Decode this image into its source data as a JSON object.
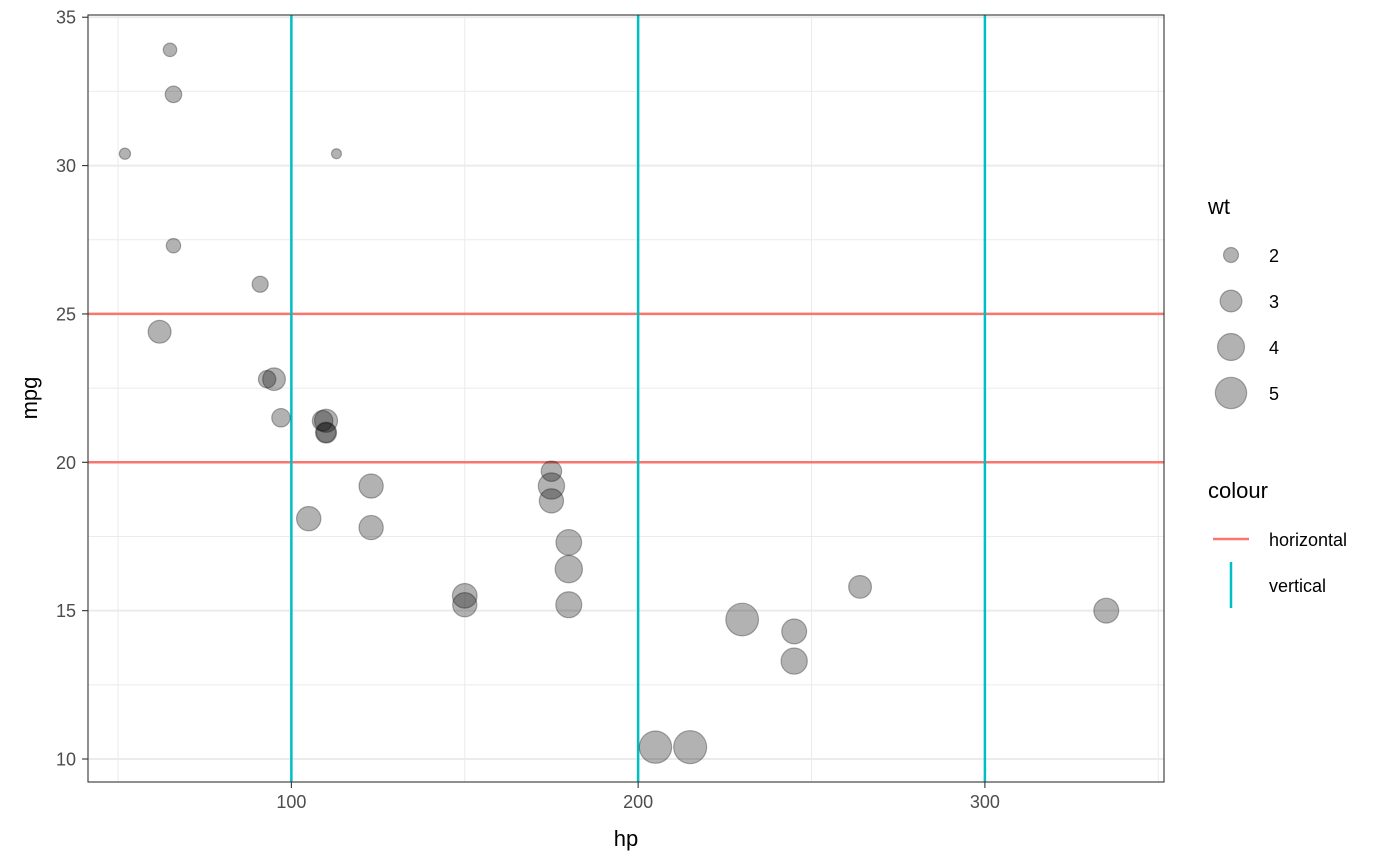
{
  "chart_data": {
    "type": "scatter",
    "xlabel": "hp",
    "ylabel": "mpg",
    "xlim": [
      41.35,
      351.65
    ],
    "ylim": [
      9.225,
      35.075
    ],
    "x_ticks": [
      100,
      200,
      300
    ],
    "y_ticks": [
      10,
      15,
      20,
      25,
      30,
      35
    ],
    "grid": true,
    "points": [
      {
        "x": 110,
        "y": 21.0,
        "wt": 2.62
      },
      {
        "x": 110,
        "y": 21.0,
        "wt": 2.875
      },
      {
        "x": 93,
        "y": 22.8,
        "wt": 2.32
      },
      {
        "x": 110,
        "y": 21.4,
        "wt": 3.215
      },
      {
        "x": 175,
        "y": 18.7,
        "wt": 3.44
      },
      {
        "x": 105,
        "y": 18.1,
        "wt": 3.46
      },
      {
        "x": 245,
        "y": 14.3,
        "wt": 3.57
      },
      {
        "x": 62,
        "y": 24.4,
        "wt": 3.19
      },
      {
        "x": 95,
        "y": 22.8,
        "wt": 3.15
      },
      {
        "x": 123,
        "y": 19.2,
        "wt": 3.44
      },
      {
        "x": 123,
        "y": 17.8,
        "wt": 3.44
      },
      {
        "x": 180,
        "y": 16.4,
        "wt": 4.07
      },
      {
        "x": 180,
        "y": 17.3,
        "wt": 3.73
      },
      {
        "x": 180,
        "y": 15.2,
        "wt": 3.78
      },
      {
        "x": 205,
        "y": 10.4,
        "wt": 5.25
      },
      {
        "x": 215,
        "y": 10.4,
        "wt": 5.424
      },
      {
        "x": 230,
        "y": 14.7,
        "wt": 5.345
      },
      {
        "x": 66,
        "y": 32.4,
        "wt": 2.2
      },
      {
        "x": 52,
        "y": 30.4,
        "wt": 1.615
      },
      {
        "x": 65,
        "y": 33.9,
        "wt": 1.835
      },
      {
        "x": 97,
        "y": 21.5,
        "wt": 2.465
      },
      {
        "x": 150,
        "y": 15.5,
        "wt": 3.52
      },
      {
        "x": 150,
        "y": 15.2,
        "wt": 3.435
      },
      {
        "x": 245,
        "y": 13.3,
        "wt": 3.84
      },
      {
        "x": 175,
        "y": 19.2,
        "wt": 3.845
      },
      {
        "x": 66,
        "y": 27.3,
        "wt": 1.935
      },
      {
        "x": 91,
        "y": 26.0,
        "wt": 2.14
      },
      {
        "x": 113,
        "y": 30.4,
        "wt": 1.513
      },
      {
        "x": 264,
        "y": 15.8,
        "wt": 3.17
      },
      {
        "x": 175,
        "y": 19.7,
        "wt": 2.77
      },
      {
        "x": 335,
        "y": 15.0,
        "wt": 3.57
      },
      {
        "x": 109,
        "y": 21.4,
        "wt": 2.78
      }
    ],
    "hlines": [
      20,
      25
    ],
    "vlines": [
      100,
      200,
      300
    ],
    "colors": {
      "horizontal": "#F8766D",
      "vertical": "#00BFC4",
      "point": "#000000"
    },
    "legend": {
      "position": "right",
      "size": {
        "title": "wt",
        "values": [
          2,
          3,
          4,
          5
        ],
        "labels": [
          "2",
          "3",
          "4",
          "5"
        ]
      },
      "colour": {
        "title": "colour",
        "entries": [
          "horizontal",
          "vertical"
        ]
      }
    }
  }
}
